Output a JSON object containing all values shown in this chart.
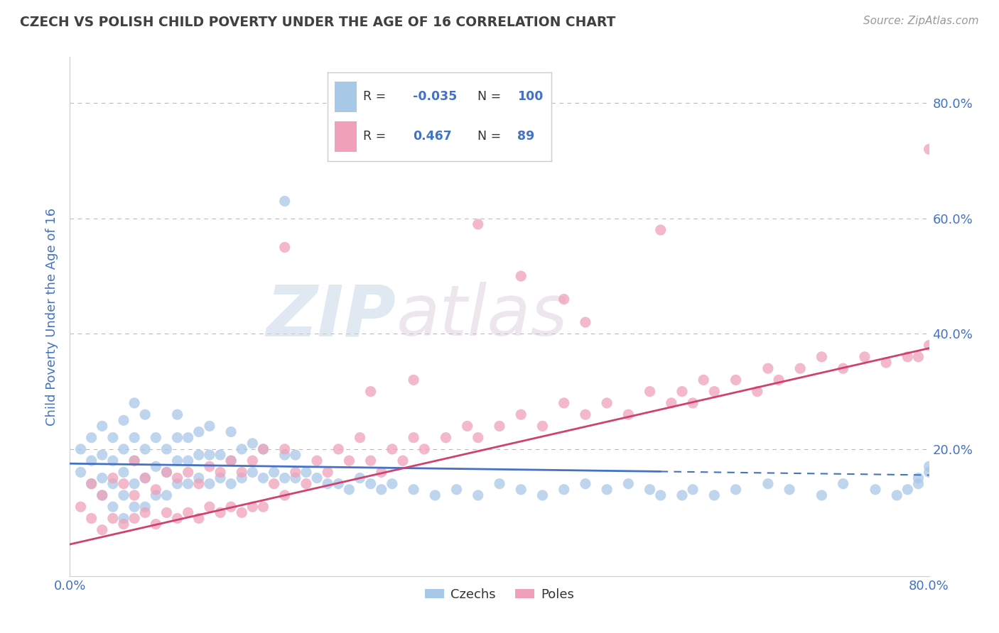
{
  "title": "CZECH VS POLISH CHILD POVERTY UNDER THE AGE OF 16 CORRELATION CHART",
  "source": "Source: ZipAtlas.com",
  "ylabel": "Child Poverty Under the Age of 16",
  "xlim": [
    0.0,
    0.8
  ],
  "ylim": [
    -0.02,
    0.88
  ],
  "xtick_positions": [
    0.0,
    0.8
  ],
  "xticklabels": [
    "0.0%",
    "80.0%"
  ],
  "ytick_positions": [
    0.0,
    0.2,
    0.4,
    0.6,
    0.8
  ],
  "yticklabels": [
    "",
    "20.0%",
    "40.0%",
    "60.0%",
    "80.0%"
  ],
  "czechs_R": -0.035,
  "czechs_N": 100,
  "poles_R": 0.467,
  "poles_N": 89,
  "czechs_color": "#a8c8e8",
  "poles_color": "#f0a0b8",
  "czechs_line_color": "#4472c4",
  "poles_line_color": "#d04070",
  "title_color": "#404040",
  "axis_tick_color": "#4472c4",
  "legend_color": "#4472c4",
  "watermark_color": "#d0dce8",
  "watermark_color2": "#d0c8d8",
  "background_color": "#ffffff",
  "czechs_x": [
    0.01,
    0.01,
    0.02,
    0.02,
    0.02,
    0.03,
    0.03,
    0.03,
    0.03,
    0.04,
    0.04,
    0.04,
    0.04,
    0.05,
    0.05,
    0.05,
    0.05,
    0.05,
    0.06,
    0.06,
    0.06,
    0.06,
    0.06,
    0.07,
    0.07,
    0.07,
    0.07,
    0.08,
    0.08,
    0.08,
    0.09,
    0.09,
    0.09,
    0.1,
    0.1,
    0.1,
    0.1,
    0.11,
    0.11,
    0.11,
    0.12,
    0.12,
    0.12,
    0.13,
    0.13,
    0.13,
    0.14,
    0.14,
    0.15,
    0.15,
    0.15,
    0.16,
    0.16,
    0.17,
    0.17,
    0.18,
    0.18,
    0.19,
    0.2,
    0.2,
    0.21,
    0.21,
    0.22,
    0.23,
    0.24,
    0.25,
    0.26,
    0.27,
    0.28,
    0.29,
    0.3,
    0.32,
    0.34,
    0.36,
    0.38,
    0.4,
    0.42,
    0.44,
    0.46,
    0.48,
    0.5,
    0.52,
    0.54,
    0.55,
    0.57,
    0.58,
    0.6,
    0.62,
    0.65,
    0.67,
    0.7,
    0.72,
    0.75,
    0.77,
    0.78,
    0.79,
    0.79,
    0.8,
    0.8,
    0.2
  ],
  "czechs_y": [
    0.16,
    0.2,
    0.14,
    0.18,
    0.22,
    0.12,
    0.15,
    0.19,
    0.24,
    0.1,
    0.14,
    0.18,
    0.22,
    0.08,
    0.12,
    0.16,
    0.2,
    0.25,
    0.1,
    0.14,
    0.18,
    0.22,
    0.28,
    0.1,
    0.15,
    0.2,
    0.26,
    0.12,
    0.17,
    0.22,
    0.12,
    0.16,
    0.2,
    0.14,
    0.18,
    0.22,
    0.26,
    0.14,
    0.18,
    0.22,
    0.15,
    0.19,
    0.23,
    0.14,
    0.19,
    0.24,
    0.15,
    0.19,
    0.14,
    0.18,
    0.23,
    0.15,
    0.2,
    0.16,
    0.21,
    0.15,
    0.2,
    0.16,
    0.15,
    0.19,
    0.15,
    0.19,
    0.16,
    0.15,
    0.14,
    0.14,
    0.13,
    0.15,
    0.14,
    0.13,
    0.14,
    0.13,
    0.12,
    0.13,
    0.12,
    0.14,
    0.13,
    0.12,
    0.13,
    0.14,
    0.13,
    0.14,
    0.13,
    0.12,
    0.12,
    0.13,
    0.12,
    0.13,
    0.14,
    0.13,
    0.12,
    0.14,
    0.13,
    0.12,
    0.13,
    0.14,
    0.15,
    0.16,
    0.17,
    0.63
  ],
  "poles_x": [
    0.01,
    0.02,
    0.02,
    0.03,
    0.03,
    0.04,
    0.04,
    0.05,
    0.05,
    0.06,
    0.06,
    0.06,
    0.07,
    0.07,
    0.08,
    0.08,
    0.09,
    0.09,
    0.1,
    0.1,
    0.11,
    0.11,
    0.12,
    0.12,
    0.13,
    0.13,
    0.14,
    0.14,
    0.15,
    0.15,
    0.16,
    0.16,
    0.17,
    0.17,
    0.18,
    0.18,
    0.19,
    0.2,
    0.2,
    0.21,
    0.22,
    0.23,
    0.24,
    0.25,
    0.26,
    0.27,
    0.28,
    0.29,
    0.3,
    0.31,
    0.32,
    0.33,
    0.35,
    0.37,
    0.38,
    0.4,
    0.42,
    0.44,
    0.46,
    0.48,
    0.5,
    0.52,
    0.54,
    0.56,
    0.57,
    0.58,
    0.59,
    0.6,
    0.62,
    0.64,
    0.65,
    0.66,
    0.68,
    0.7,
    0.72,
    0.74,
    0.76,
    0.78,
    0.79,
    0.8,
    0.38,
    0.42,
    0.55,
    0.46,
    0.48,
    0.32,
    0.28,
    0.2,
    0.8
  ],
  "poles_y": [
    0.1,
    0.08,
    0.14,
    0.06,
    0.12,
    0.08,
    0.15,
    0.07,
    0.14,
    0.08,
    0.12,
    0.18,
    0.09,
    0.15,
    0.07,
    0.13,
    0.09,
    0.16,
    0.08,
    0.15,
    0.09,
    0.16,
    0.08,
    0.14,
    0.1,
    0.17,
    0.09,
    0.16,
    0.1,
    0.18,
    0.09,
    0.16,
    0.1,
    0.18,
    0.1,
    0.2,
    0.14,
    0.12,
    0.2,
    0.16,
    0.14,
    0.18,
    0.16,
    0.2,
    0.18,
    0.22,
    0.18,
    0.16,
    0.2,
    0.18,
    0.22,
    0.2,
    0.22,
    0.24,
    0.22,
    0.24,
    0.26,
    0.24,
    0.28,
    0.26,
    0.28,
    0.26,
    0.3,
    0.28,
    0.3,
    0.28,
    0.32,
    0.3,
    0.32,
    0.3,
    0.34,
    0.32,
    0.34,
    0.36,
    0.34,
    0.36,
    0.35,
    0.36,
    0.36,
    0.38,
    0.59,
    0.5,
    0.58,
    0.46,
    0.42,
    0.32,
    0.3,
    0.55,
    0.72
  ]
}
